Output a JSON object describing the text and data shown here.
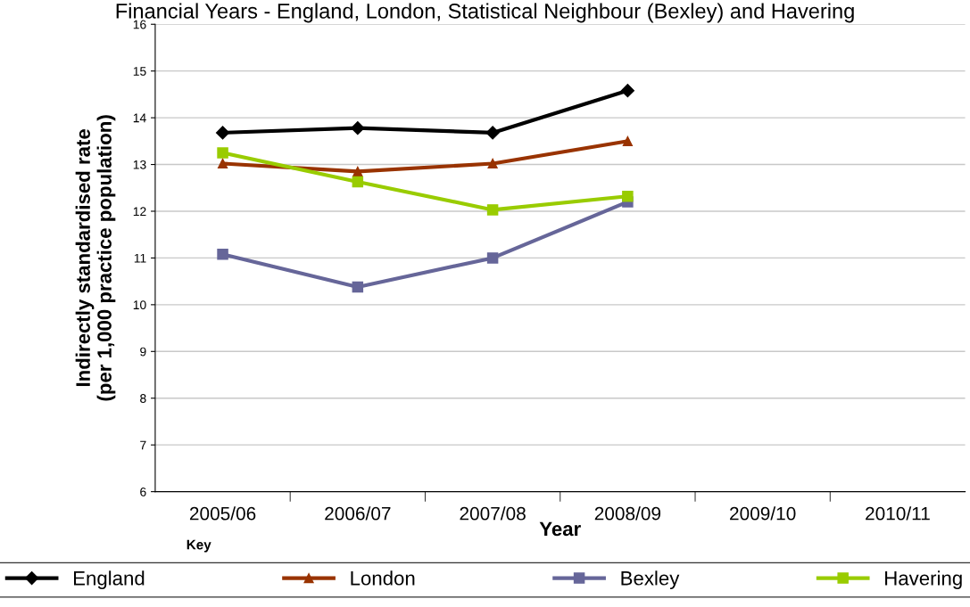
{
  "chart_data": {
    "type": "line",
    "title": "Financial Years - England, London, Statistical Neighbour (Bexley) and Havering",
    "xlabel": "Year",
    "ylabel": "Indirectly standardised rate\n(per 1,000 practice population)",
    "categories": [
      "2005/06",
      "2006/07",
      "2007/08",
      "2008/09",
      "2009/10",
      "2010/11"
    ],
    "series": [
      {
        "name": "England",
        "color": "#000000",
        "marker": "diamond",
        "values": [
          13.68,
          13.78,
          13.68,
          14.58,
          null,
          null
        ]
      },
      {
        "name": "London",
        "color": "#993300",
        "marker": "triangle",
        "values": [
          13.02,
          12.85,
          13.02,
          13.5,
          null,
          null
        ]
      },
      {
        "name": "Bexley",
        "color": "#666699",
        "marker": "square",
        "values": [
          11.08,
          10.38,
          11.0,
          12.2,
          null,
          null
        ]
      },
      {
        "name": "Havering",
        "color": "#99cc00",
        "marker": "square",
        "values": [
          13.25,
          12.63,
          12.03,
          12.32,
          null,
          null
        ]
      }
    ],
    "ylim": [
      6,
      16
    ],
    "yticks": [
      6,
      7,
      8,
      9,
      10,
      11,
      12,
      13,
      14,
      15,
      16
    ],
    "grid": "y",
    "legend": "bottom",
    "line_style": "solid",
    "annotations": [
      "Key"
    ]
  }
}
